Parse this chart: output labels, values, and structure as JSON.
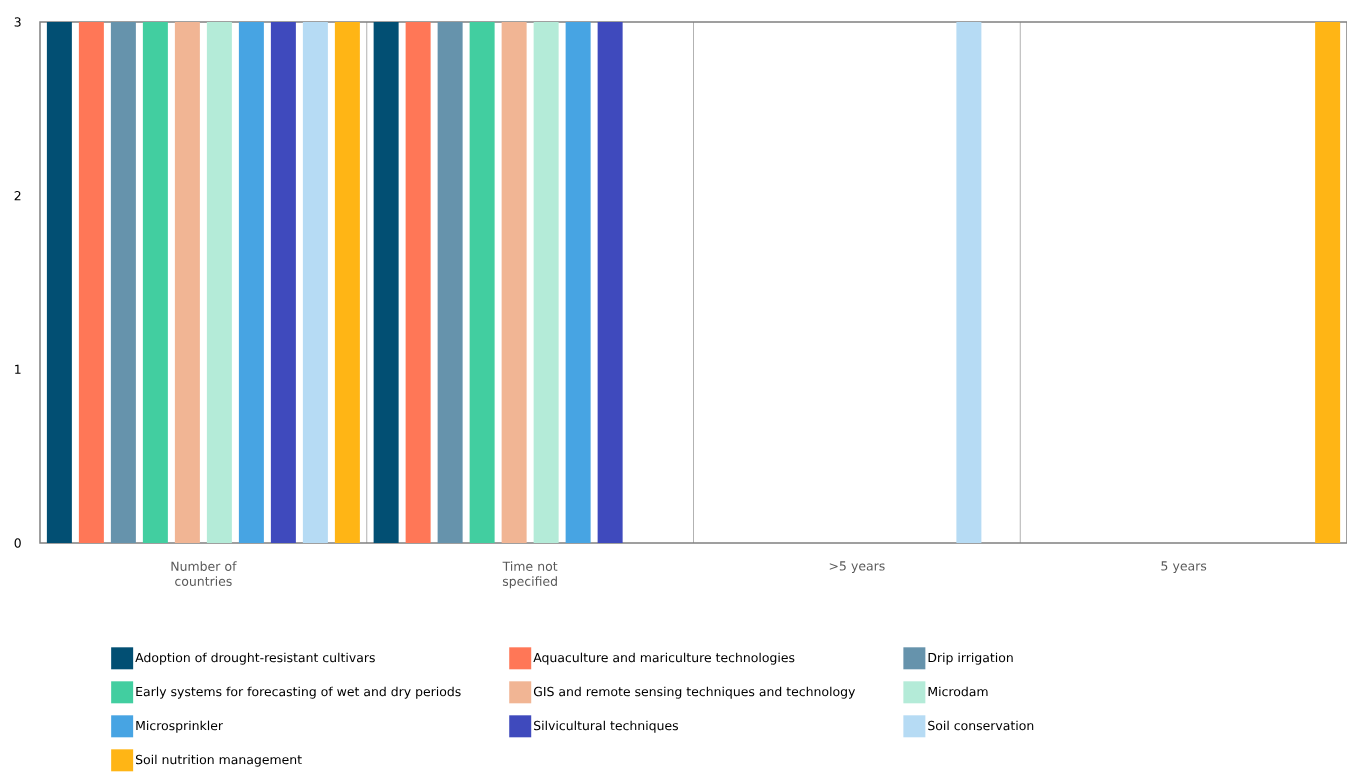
{
  "chart_data": {
    "type": "bar",
    "categories": [
      "Number of countries",
      "Time not specified",
      ">5 years",
      "5 years"
    ],
    "ylim": [
      0,
      3
    ],
    "yticks": [
      0,
      1,
      2,
      3
    ],
    "grid": "x",
    "legend": "bottom",
    "series": [
      {
        "name": "Adoption of drought-resistant cultivars",
        "color": "#024f73",
        "values": [
          3,
          3,
          null,
          null
        ]
      },
      {
        "name": "Aquaculture and mariculture technologies",
        "color": "#ff7757",
        "values": [
          3,
          3,
          null,
          null
        ]
      },
      {
        "name": "Drip irrigation",
        "color": "#6693ac",
        "values": [
          3,
          3,
          null,
          null
        ]
      },
      {
        "name": "Early systems for forecasting of wet and dry periods",
        "color": "#42cea0",
        "values": [
          3,
          3,
          null,
          null
        ]
      },
      {
        "name": "GIS and remote sensing techniques and technology",
        "color": "#f1b594",
        "values": [
          3,
          3,
          null,
          null
        ]
      },
      {
        "name": "Microdam",
        "color": "#b4ebd8",
        "values": [
          3,
          3,
          null,
          null
        ]
      },
      {
        "name": "Microsprinkler",
        "color": "#47a4e3",
        "values": [
          3,
          3,
          null,
          null
        ]
      },
      {
        "name": "Silvicultural techniques",
        "color": "#3f4abd",
        "values": [
          3,
          3,
          null,
          null
        ]
      },
      {
        "name": "Soil conservation",
        "color": "#b6dbf4",
        "values": [
          3,
          null,
          3,
          null
        ]
      },
      {
        "name": "Soil nutrition management",
        "color": "#ffb515",
        "values": [
          3,
          null,
          null,
          3
        ]
      }
    ]
  }
}
